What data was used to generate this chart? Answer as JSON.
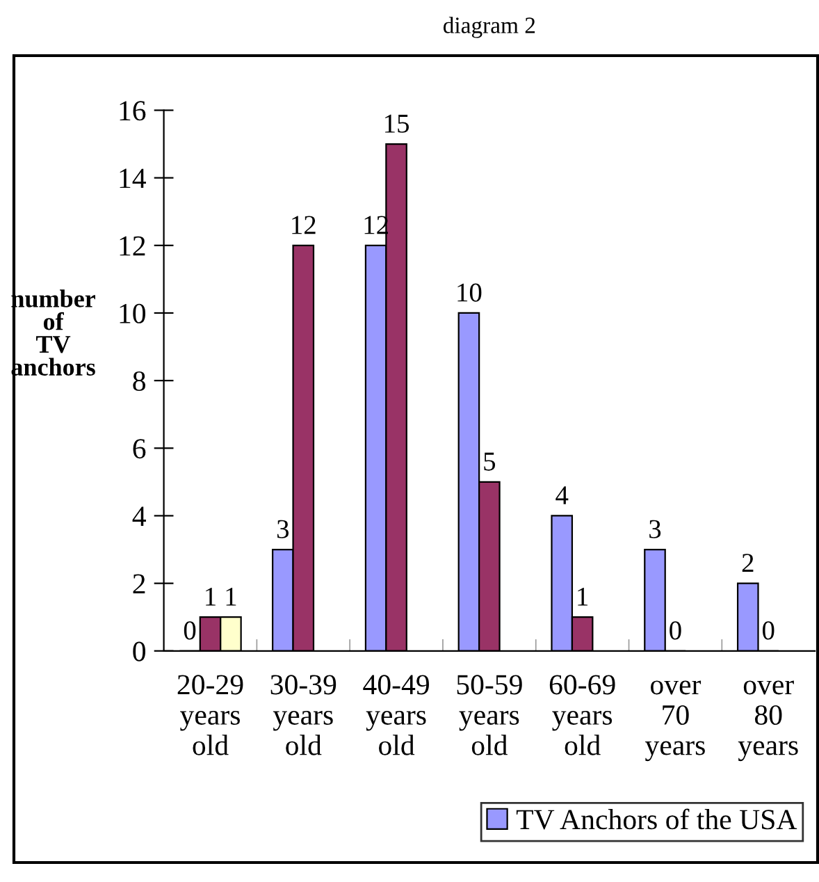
{
  "chart_data": {
    "type": "bar",
    "title": "diagram 2",
    "ylabel": "number\nof\nTV\nanchors",
    "categories": [
      "20-29\nyears\nold",
      "30-39\nyears\nold",
      "40-49\nyears\nold",
      "50-59\nyears\nold",
      "60-69\nyears\nold",
      "over\n70\nyears",
      "over\n80\nyears"
    ],
    "series": [
      {
        "name": "TV Anchors of the USA",
        "color": "#9999ff",
        "values": [
          0,
          3,
          12,
          10,
          4,
          3,
          2
        ]
      },
      {
        "color": "#993366",
        "values": [
          1,
          12,
          15,
          5,
          1,
          0,
          0
        ]
      },
      {
        "color": "#ffffcc",
        "values": [
          1,
          null,
          null,
          null,
          null,
          null,
          null
        ]
      }
    ],
    "ylim": [
      0,
      16
    ],
    "yticks": [
      0,
      2,
      4,
      6,
      8,
      10,
      12,
      14,
      16
    ],
    "data_labels": true,
    "grid": false,
    "legend": "bottom right"
  }
}
